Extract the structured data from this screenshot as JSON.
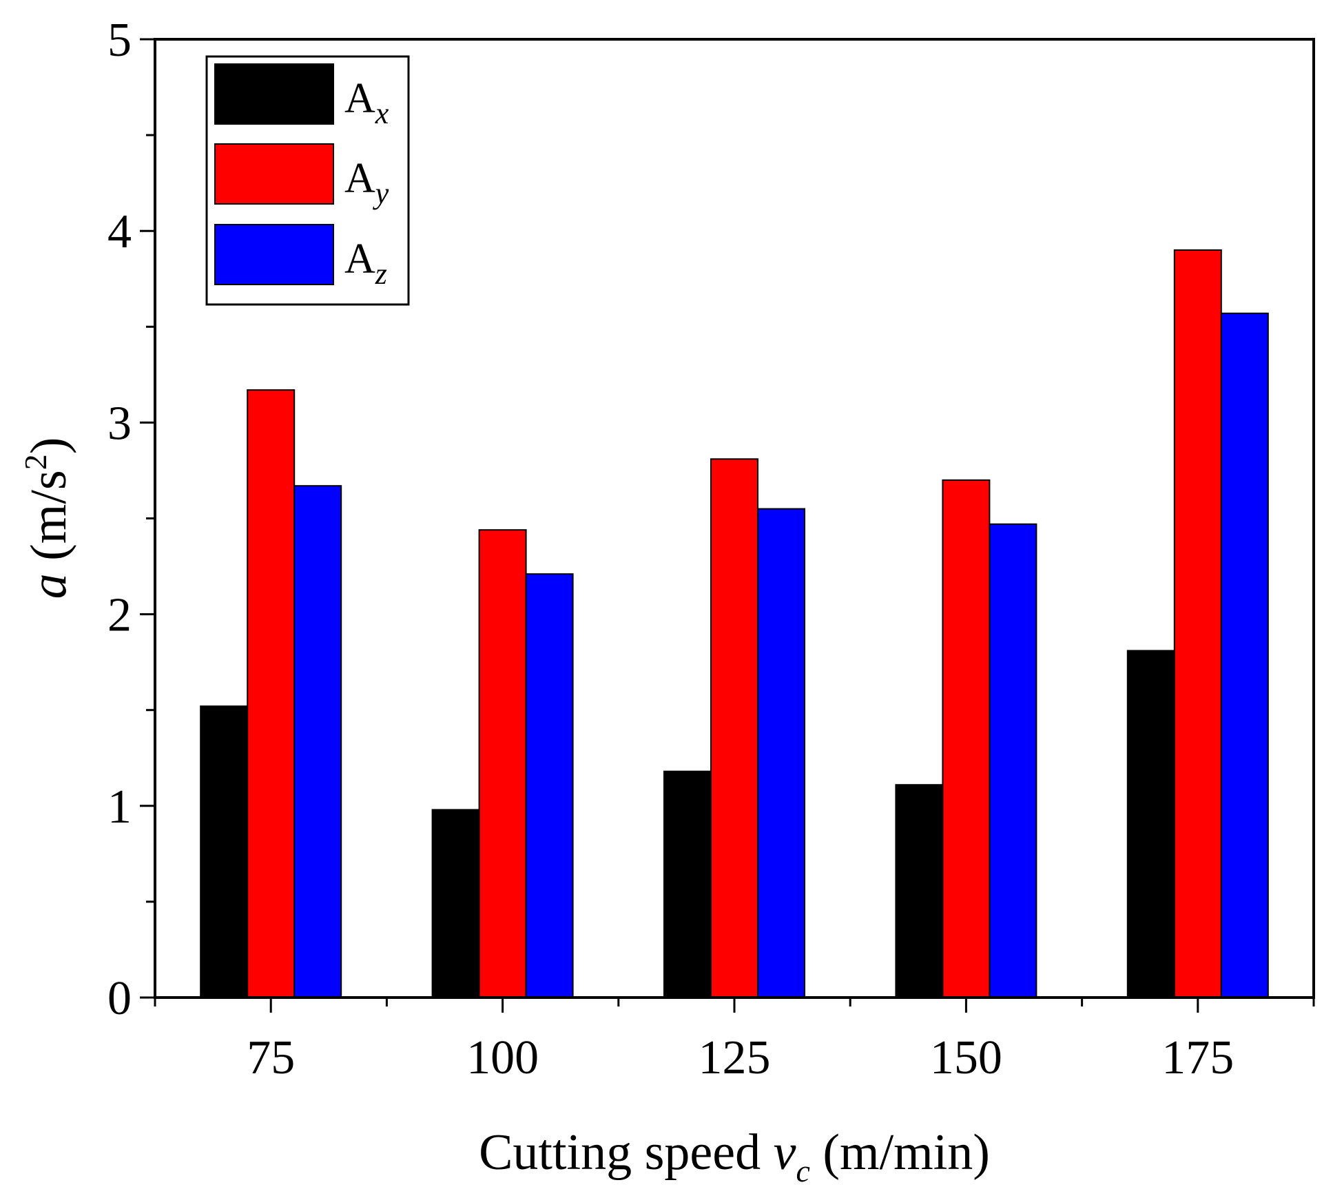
{
  "chart_data": {
    "type": "bar",
    "categories": [
      "75",
      "100",
      "125",
      "150",
      "175"
    ],
    "series": [
      {
        "name": "A",
        "sub": "x",
        "color": "#000000",
        "values": [
          1.52,
          0.98,
          1.18,
          1.11,
          1.81
        ]
      },
      {
        "name": "A",
        "sub": "y",
        "color": "#ff0000",
        "values": [
          3.17,
          2.44,
          2.81,
          2.7,
          3.9
        ]
      },
      {
        "name": "A",
        "sub": "z",
        "color": "#0000ff",
        "values": [
          2.67,
          2.21,
          2.55,
          2.47,
          3.57
        ]
      }
    ],
    "xlabel": {
      "text": "Cutting speed ",
      "var": "v",
      "var_sub": "c",
      "unit": " (m/min)"
    },
    "ylabel": {
      "var": "a",
      "unit_open": " (m/s",
      "unit_sup": "2",
      "unit_close": ")"
    },
    "ylim": [
      0,
      5
    ],
    "yticks": [
      "0",
      "1",
      "2",
      "3",
      "4",
      "5"
    ],
    "grid": false,
    "legend_position": "top-left"
  }
}
